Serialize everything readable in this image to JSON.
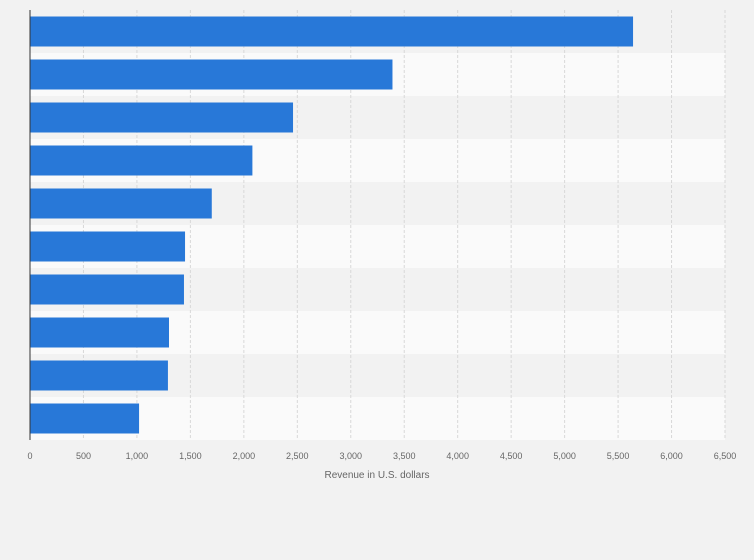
{
  "chart_data": {
    "type": "bar",
    "orientation": "horizontal",
    "values": [
      5640,
      3390,
      2460,
      2080,
      1700,
      1450,
      1440,
      1300,
      1290,
      1020
    ],
    "xlabel": "Revenue in U.S. dollars",
    "xlim": [
      0,
      6500
    ],
    "tick_values": [
      0,
      500,
      1000,
      1500,
      2000,
      2500,
      3000,
      3500,
      4000,
      4500,
      5000,
      5500,
      6000,
      6500
    ],
    "tick_labels": [
      "0",
      "500",
      "1,000",
      "1,500",
      "2,000",
      "2,500",
      "3,000",
      "3,500",
      "4,000",
      "4,500",
      "5,000",
      "5,500",
      "6,000",
      "6,500"
    ],
    "grid": true,
    "colors": {
      "bar": "#2878d8",
      "band_light": "#fafafa",
      "band_dark": "#f2f2f2",
      "grid": "#d8d8d8",
      "axis": "#333333",
      "text": "#666666"
    }
  }
}
